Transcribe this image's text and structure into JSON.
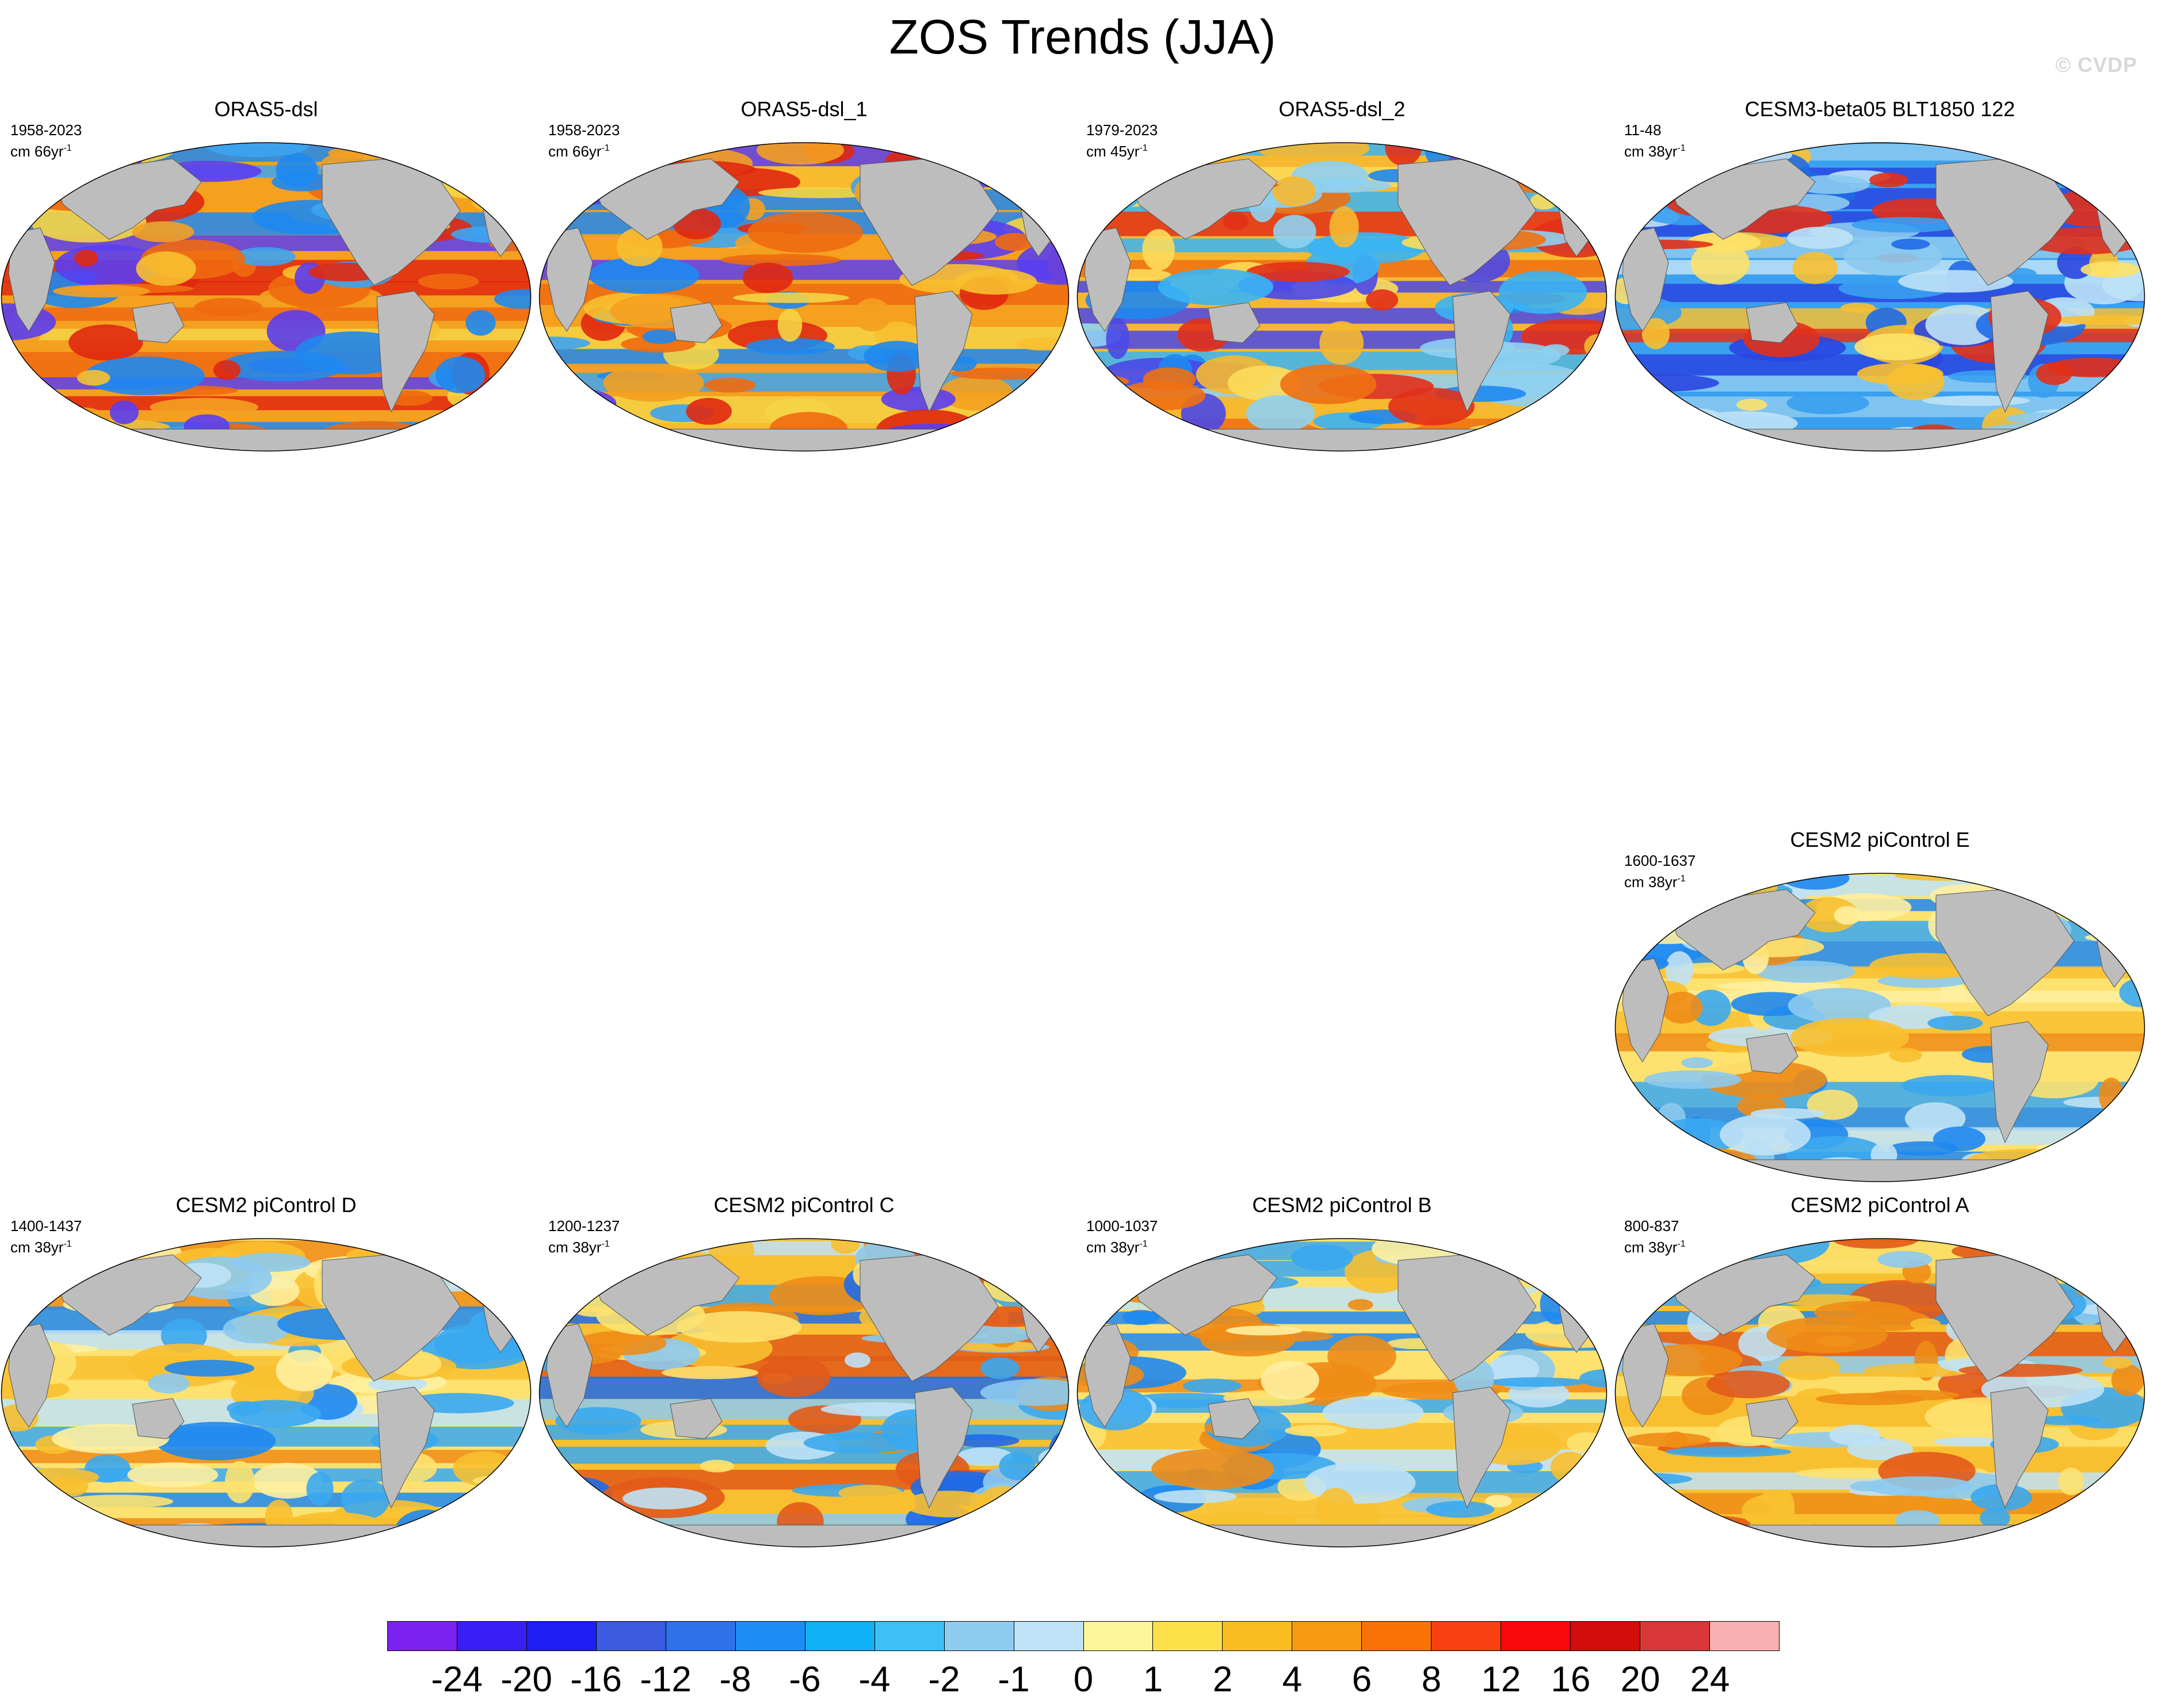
{
  "title": "ZOS Trends (JJA)",
  "copyright": "© CVDP",
  "panels": [
    {
      "id": "orasdsl",
      "title": "ORAS5-dsl",
      "years": "1958-2023",
      "units": "cm 66yr",
      "exp": "-1",
      "palette": [
        "#f4a020",
        "#f06a10",
        "#3da4f0",
        "#f8c030",
        "#e02810",
        "#1e88f0",
        "#f5d445",
        "#5a3ef0"
      ]
    },
    {
      "id": "orasdsl1",
      "title": "ORAS5-dsl_1",
      "years": "1958-2023",
      "units": "cm 66yr",
      "exp": "-1",
      "palette": [
        "#f4a020",
        "#f06a10",
        "#3da4f0",
        "#f8c030",
        "#e02810",
        "#1e88f0",
        "#f5d445",
        "#5a3ef0"
      ]
    },
    {
      "id": "orasdsl2",
      "title": "ORAS5-dsl_2",
      "years": "1979-2023",
      "units": "cm 45yr",
      "exp": "-1",
      "palette": [
        "#f6b830",
        "#3ab4f4",
        "#ee7012",
        "#1e88f0",
        "#fddc5a",
        "#e23018",
        "#8ed0f2",
        "#4a48e8"
      ]
    },
    {
      "id": "cesm3",
      "title": "CESM3-beta05 BLT1850 122",
      "years": "11-48",
      "units": "cm 38yr",
      "exp": "-1",
      "palette": [
        "#3aa0f0",
        "#1e6ae8",
        "#8ccaf0",
        "#fde26a",
        "#bfe2f6",
        "#2a46e0",
        "#f8c030",
        "#e23018"
      ]
    },
    {
      "id": "picontrolE",
      "title": "CESM2 piControl E",
      "years": "1600-1637",
      "units": "cm 38yr",
      "exp": "-1",
      "palette": [
        "#fde270",
        "#3aa8f0",
        "#8ccaf0",
        "#f8c030",
        "#bfe2f6",
        "#ee8c16",
        "#1e88f0",
        "#fff0a0"
      ]
    },
    {
      "id": "picontrolD",
      "title": "CESM2 piControl D",
      "years": "1400-1437",
      "units": "cm 38yr",
      "exp": "-1",
      "palette": [
        "#fde270",
        "#3aa8f0",
        "#f8c030",
        "#8ccaf0",
        "#bfe2f6",
        "#ee8c16",
        "#1e88f0",
        "#fff0a0"
      ]
    },
    {
      "id": "picontrolC",
      "title": "CESM2 piControl C",
      "years": "1200-1237",
      "units": "cm 38yr",
      "exp": "-1",
      "palette": [
        "#f8c030",
        "#3aa8f0",
        "#ee8c16",
        "#8ccaf0",
        "#fde270",
        "#e25a18",
        "#1e6ae8",
        "#bfe2f6"
      ]
    },
    {
      "id": "picontrolB",
      "title": "CESM2 piControl B",
      "years": "1000-1037",
      "units": "cm 38yr",
      "exp": "-1",
      "palette": [
        "#fde270",
        "#3aa8f0",
        "#f8c030",
        "#8ccaf0",
        "#ee8c16",
        "#bfe2f6",
        "#1e88f0",
        "#fff0a0"
      ]
    },
    {
      "id": "picontrolA",
      "title": "CESM2 piControl A",
      "years": "800-837",
      "units": "cm 38yr",
      "exp": "-1",
      "palette": [
        "#f8c030",
        "#3aa8f0",
        "#fde270",
        "#8ccaf0",
        "#ee8c16",
        "#bfe2f6",
        "#1e88f0",
        "#e25a18"
      ]
    }
  ],
  "colorbar": {
    "colors": [
      "#7b22f0",
      "#3a1ef6",
      "#1e1ef4",
      "#3a5ae0",
      "#2e72ea",
      "#1e8cf6",
      "#10b0f6",
      "#3cc0f6",
      "#8ecdf0",
      "#bfe2f6",
      "#fff59a",
      "#fde04a",
      "#fbbd20",
      "#f89a10",
      "#f87208",
      "#f84010",
      "#f80808",
      "#d40c0c",
      "#d83838",
      "#f8b0b0"
    ],
    "labels": [
      "-24",
      "-20",
      "-16",
      "-12",
      "-8",
      "-6",
      "-4",
      "-2",
      "-1",
      "0",
      "1",
      "2",
      "4",
      "6",
      "8",
      "12",
      "16",
      "20",
      "24"
    ]
  }
}
